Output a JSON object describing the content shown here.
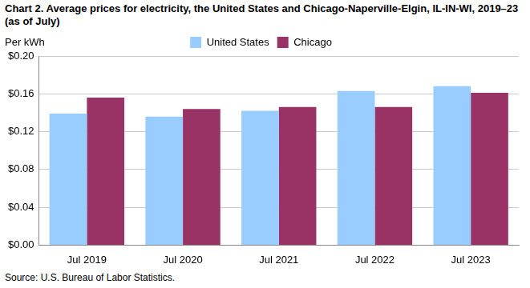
{
  "chart_data": {
    "type": "bar",
    "title": "Chart 2. Average prices for electricity, the United States and Chicago-Naperville-Elgin, IL-IN-WI, 2019–23 (as of July)",
    "y_label": "Per kWh",
    "source": "Source: U.S. Bureau of Labor Statistics.",
    "categories": [
      "Jul 2019",
      "Jul 2020",
      "Jul 2021",
      "Jul 2022",
      "Jul 2023"
    ],
    "series": [
      {
        "name": "United States",
        "color": "#99ccff",
        "values": [
          0.139,
          0.136,
          0.142,
          0.163,
          0.168
        ]
      },
      {
        "name": "Chicago",
        "color": "#993366",
        "values": [
          0.156,
          0.144,
          0.146,
          0.146,
          0.161
        ]
      }
    ],
    "ylim": [
      0,
      0.2
    ],
    "yticks": [
      {
        "value": 0,
        "label": "$0.00"
      },
      {
        "value": 0.04,
        "label": "$0.04"
      },
      {
        "value": 0.08,
        "label": "$0.08"
      },
      {
        "value": 0.12,
        "label": "$0.12"
      },
      {
        "value": 0.16,
        "label": "$0.16"
      },
      {
        "value": 0.2,
        "label": "$0.20"
      }
    ],
    "grid": true,
    "legend": "top"
  }
}
